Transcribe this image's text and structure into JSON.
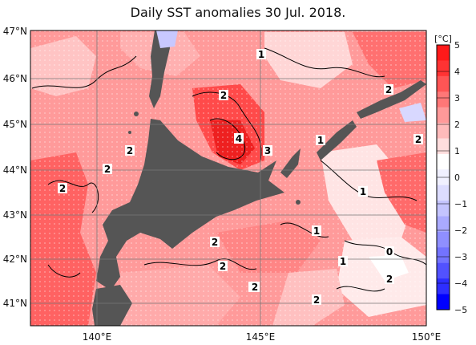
{
  "title": "Daily SST anomalies 30 Jul. 2018.",
  "map": {
    "lat_labels": [
      "47°N",
      "46°N",
      "45°N",
      "44°N",
      "43°N",
      "42°N",
      "41°N"
    ],
    "lon_labels": [
      "140°E",
      "145°E",
      "150°E"
    ],
    "contour_labels": [
      "1",
      "2",
      "2",
      "4",
      "3",
      "1",
      "2",
      "2",
      "2",
      "2",
      "1",
      "2",
      "2",
      "1",
      "0",
      "2",
      "1",
      "2",
      "2",
      "2"
    ]
  },
  "colorbar": {
    "unit": "[°C]",
    "ticks": [
      "5",
      "4",
      "3",
      "2",
      "1",
      "0",
      "−1",
      "−2",
      "−3",
      "−4",
      "−5"
    ],
    "colors": [
      "#ff1a1a",
      "#ff3333",
      "#ff5555",
      "#ff7777",
      "#ff9999",
      "#ffbbbb",
      "#ffdddd",
      "#ffffff",
      "#f0f0ff",
      "#dcdcff",
      "#c4c4ff",
      "#aaaaff",
      "#8f8fff",
      "#7373ff",
      "#5252ff",
      "#2e2eff",
      "#0000ff"
    ]
  }
}
